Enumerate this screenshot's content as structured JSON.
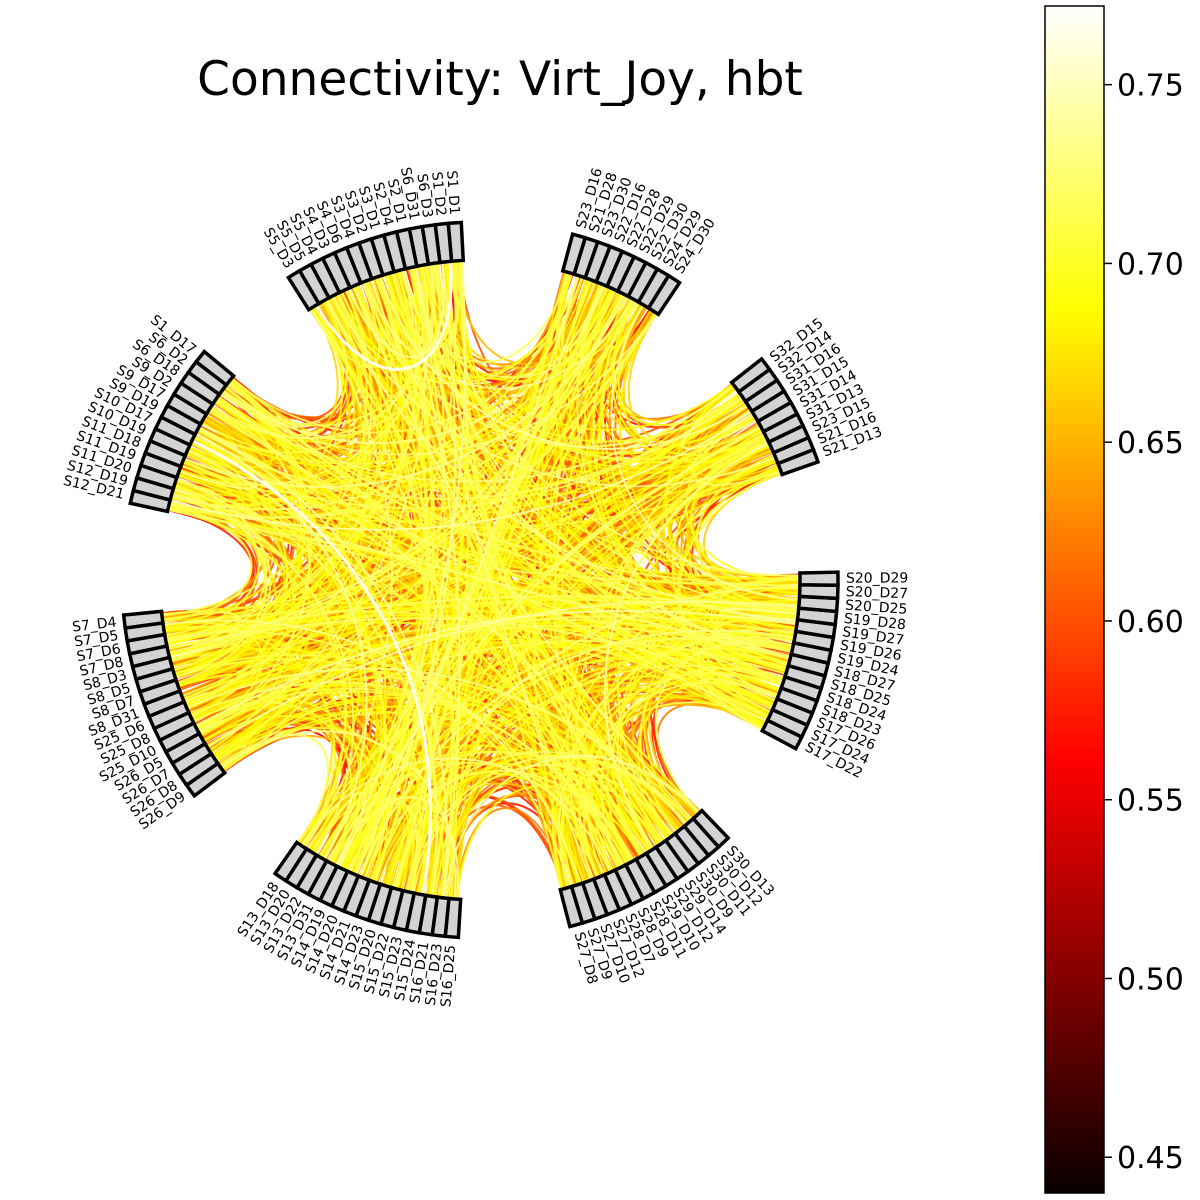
{
  "chart_data": {
    "type": "chord",
    "title": "Connectivity: Virt_Joy, hbt",
    "colormap": "hot",
    "colorbar": {
      "range": [
        0.44,
        0.772
      ],
      "ticks": [
        "0.45",
        "0.50",
        "0.55",
        "0.60",
        "0.65",
        "0.70",
        "0.75"
      ],
      "tick_values": [
        0.45,
        0.5,
        0.55,
        0.6,
        0.65,
        0.7,
        0.75
      ]
    },
    "node_colors": {
      "fill": "#d3d3d3",
      "stroke": "#000000"
    },
    "groups": [
      {
        "nodes": [
          "S1_D1",
          "S1_D2",
          "S6_D3",
          "S6_D31",
          "S2_D1",
          "S2_D4",
          "S3_D1",
          "S3_D2",
          "S3_D4",
          "S4_D6",
          "S4_D3",
          "S5_D4",
          "S5_D5",
          "S5_D3"
        ]
      },
      {
        "nodes": [
          "S1_D17",
          "S6_D2",
          "S6_D18",
          "S9_D2",
          "S9_D17",
          "S9_D19",
          "S10_D17",
          "S10_D19",
          "S11_D18",
          "S11_D19",
          "S11_D20",
          "S12_D19",
          "S12_D21"
        ]
      },
      {
        "nodes": [
          "S7_D4",
          "S7_D5",
          "S7_D6",
          "S7_D8",
          "S8_D3",
          "S8_D5",
          "S8_D7",
          "S8_D31",
          "S25_D6",
          "S25_D8",
          "S25_D10",
          "S26_D5",
          "S26_D7",
          "S26_D8",
          "S26_D9"
        ]
      },
      {
        "nodes": [
          "S13_D18",
          "S13_D20",
          "S13_D22",
          "S13_D31",
          "S14_D19",
          "S14_D20",
          "S14_D21",
          "S14_D23",
          "S15_D20",
          "S15_D22",
          "S15_D23",
          "S15_D24",
          "S16_D21",
          "S16_D23",
          "S16_D25"
        ]
      },
      {
        "nodes": [
          "S27_D8",
          "S27_D9",
          "S27_D10",
          "S27_D12",
          "S28_D7",
          "S28_D9",
          "S28_D11",
          "S29_D10",
          "S29_D12",
          "S29_D14",
          "S30_D9",
          "S30_D11",
          "S30_D12",
          "S30_D13"
        ]
      },
      {
        "nodes": [
          "S17_D22",
          "S17_D24",
          "S17_D26",
          "S18_D23",
          "S18_D24",
          "S18_D25",
          "S18_D27",
          "S19_D24",
          "S19_D26",
          "S19_D27",
          "S19_D28",
          "S20_D25",
          "S20_D27",
          "S20_D29"
        ]
      },
      {
        "nodes": [
          "S21_D13",
          "S21_D16",
          "S23_D15",
          "S31_D13",
          "S31_D14",
          "S31_D15",
          "S31_D16",
          "S32_D14",
          "S32_D15"
        ]
      },
      {
        "nodes": [
          "S24_D30",
          "S24_D29",
          "S22_D30",
          "S22_D29",
          "S22_D28",
          "S22_D16",
          "S23_D30",
          "S21_D28",
          "S23_D16"
        ]
      }
    ],
    "highlighted_links": [
      {
        "from": "S10_D17",
        "to": "S15_D24",
        "value": 0.772
      },
      {
        "from": "S5_D3",
        "to": "S1_D2",
        "value": 0.772
      }
    ]
  }
}
